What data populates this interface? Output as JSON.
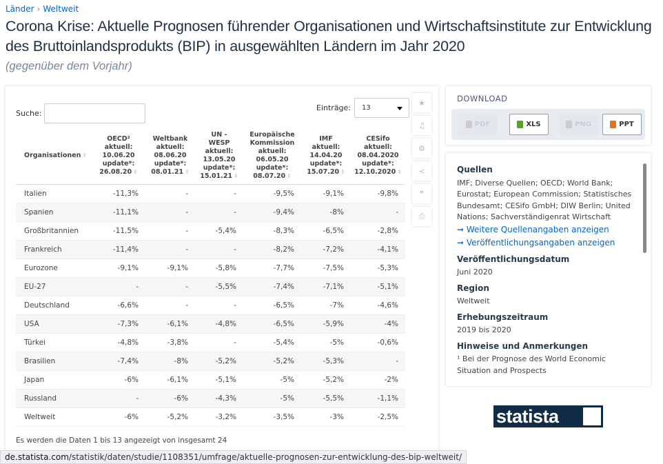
{
  "breadcrumb": [
    "Länder",
    "Weltweit"
  ],
  "title": "Corona Krise: Aktuelle Prognosen führender Organisationen und Wirtschaftsinstitute zur Entwicklung des Bruttoinlandsprodukts (BIP) in ausgewählten Ländern im Jahr 2020",
  "subtitle": "(gegenüber dem Vorjahr)",
  "search": {
    "label": "Suche:",
    "value": ""
  },
  "entries": {
    "label": "Einträge:",
    "value": "13"
  },
  "table": {
    "headers": [
      [
        "Organisationen"
      ],
      [
        "OECD²",
        "aktuell:",
        "10.06.20",
        "update*:",
        "26.08.20"
      ],
      [
        "Weltbank",
        "aktuell:",
        "08.06.20",
        "update*:",
        "08.01.21"
      ],
      [
        "UN -",
        "WESP",
        "aktuell:",
        "13.05.20",
        "update*:",
        "15.01.21"
      ],
      [
        "Europäische",
        "Kommission",
        "aktuell:",
        "06.05.20",
        "update*:",
        "08.07.20"
      ],
      [
        "IMF",
        "aktuell:",
        "14.04.20",
        "update*:",
        "15.07.20"
      ],
      [
        "CESifo",
        "aktuell:",
        "08.04.2020",
        "update*:",
        "12.10.2020"
      ]
    ],
    "rows": [
      [
        "Italien",
        "-11,3%",
        "-",
        "-",
        "-9,5%",
        "-9,1%",
        "-9,8%"
      ],
      [
        "Spanien",
        "-11,1%",
        "-",
        "-",
        "-9,4%",
        "-8%",
        "-"
      ],
      [
        "Großbritannien",
        "-11,5%",
        "-",
        "-5,4%",
        "-8,3%",
        "-6,5%",
        "-2,8%"
      ],
      [
        "Frankreich",
        "-11,4%",
        "-",
        "-",
        "-8,2%",
        "-7,2%",
        "-4,1%"
      ],
      [
        "Eurozone",
        "-9,1%",
        "-9,1%",
        "-5,8%",
        "-7,7%",
        "-7,5%",
        "-5,3%"
      ],
      [
        "EU-27",
        "-",
        "-",
        "-5,5%",
        "-7,4%",
        "-7,1%",
        "-5,1%"
      ],
      [
        "Deutschland",
        "-6,6%",
        "-",
        "-",
        "-6,5%",
        "-7%",
        "-4,6%"
      ],
      [
        "USA",
        "-7,3%",
        "-6,1%",
        "-4,8%",
        "-6,5%",
        "-5,9%",
        "-4%"
      ],
      [
        "Türkei",
        "-4,8%",
        "-3,8%",
        "-",
        "-5,4%",
        "-5%",
        "-0,6%"
      ],
      [
        "Brasilien",
        "-7,4%",
        "-8%",
        "-5,2%",
        "-5,2%",
        "-5,3%",
        "-"
      ],
      [
        "Japan",
        "-6%",
        "-6,1%",
        "-5,1%",
        "-5%",
        "-5,2%",
        "-2%"
      ],
      [
        "Russland",
        "-",
        "-6%",
        "-4,3%",
        "-5%",
        "-5,5%",
        "-1,1%"
      ],
      [
        "Weltweit",
        "-6%",
        "-5,2%",
        "-3,2%",
        "-3,5%",
        "-3%",
        "-2,5%"
      ]
    ],
    "footer": "Es werden die Daten 1 bis 13 angezeigt von insgesamt 24"
  },
  "tools": [
    "star-icon",
    "bell-icon",
    "gear-icon",
    "share-icon",
    "quote-icon",
    "print-icon"
  ],
  "download": {
    "title": "DOWNLOAD",
    "buttons": [
      {
        "label": "PDF",
        "enabled": false
      },
      {
        "label": "XLS",
        "enabled": true,
        "color": "#5aa02c"
      },
      {
        "label": "PNG",
        "enabled": false
      },
      {
        "label": "PPT",
        "enabled": true,
        "color": "#e8731e"
      }
    ]
  },
  "info": {
    "sources_title": "Quellen",
    "sources": "IMF; Diverse Quellen; OECD; World Bank; Eurostat; European Commission; Statistisches Bundesamt; CESifo GmbH; DIW Berlin; United Nations; Sachverständigenrat Wirtschaft",
    "link1": "➞ Weitere Quellenangaben anzeigen",
    "link2": "➞ Veröffentlichungsangaben anzeigen",
    "pub_title": "Veröffentlichungsdatum",
    "pub": "Juni 2020",
    "region_title": "Region",
    "region": "Weltweit",
    "period_title": "Erhebungszeitraum",
    "period": "2019 bis 2020",
    "notes_title": "Hinweise und Anmerkungen",
    "notes": "¹ Bei der Prognose des World Economic Situation and Prospects"
  },
  "logo": "statista",
  "url": {
    "domain": "de.statista.com",
    "path": "/statistik/daten/studie/1108351/umfrage/aktuelle-prognosen-zur-entwicklung-des-bip-weltweit/"
  }
}
